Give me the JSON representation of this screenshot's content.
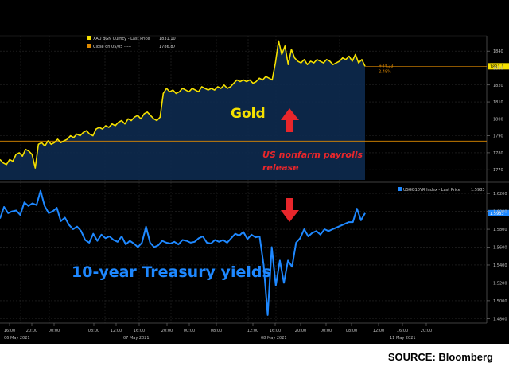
{
  "chart_data": [
    {
      "type": "area",
      "legend": [
        {
          "text": "XAU BGN Curncy - Last Price",
          "value": "1831.10",
          "color": "#f5e000"
        },
        {
          "text": "Close on 05/05 -----",
          "value": "1786.87",
          "color": "#e08a00"
        }
      ],
      "annotation": "Gold",
      "series": [
        {
          "name": "XAU BGN Curncy",
          "color": "#f5e000",
          "values": [
            1776,
            1774,
            1773,
            1776,
            1775,
            1779,
            1780,
            1778,
            1782,
            1781,
            1779,
            1771,
            1785,
            1786,
            1784,
            1787,
            1785,
            1786,
            1788,
            1786,
            1787,
            1788,
            1790,
            1789,
            1791,
            1790,
            1792,
            1793,
            1791,
            1790,
            1794,
            1795,
            1794,
            1796,
            1795,
            1797,
            1796,
            1798,
            1799,
            1797,
            1800,
            1799,
            1801,
            1802,
            1800,
            1803,
            1804,
            1802,
            1800,
            1799,
            1801,
            1815,
            1818,
            1816,
            1817,
            1815,
            1816,
            1818,
            1817,
            1816,
            1818,
            1817,
            1816,
            1819,
            1818,
            1817,
            1818,
            1817,
            1819,
            1818,
            1820,
            1818,
            1819,
            1821,
            1823,
            1822,
            1823,
            1822,
            1823,
            1821,
            1822,
            1824,
            1823,
            1825,
            1824,
            1823,
            1833,
            1846,
            1838,
            1843,
            1832,
            1841,
            1836,
            1834,
            1833,
            1835,
            1832,
            1834,
            1833,
            1835,
            1834,
            1833,
            1835,
            1834,
            1832,
            1833,
            1834,
            1836,
            1835,
            1837,
            1834,
            1838,
            1833,
            1835,
            1831
          ]
        }
      ],
      "reference_line": {
        "value": 1786.87,
        "color": "#e08a00"
      },
      "current_label": "1831.1",
      "change_labels": [
        "+44.23",
        "2.48%"
      ],
      "ylim": [
        1764,
        1849
      ],
      "y_ticks": [
        "1840",
        "1830",
        "1820",
        "1810",
        "1800",
        "1790",
        "1780",
        "1770"
      ]
    },
    {
      "type": "line",
      "legend": [
        {
          "text": "USGG10YR Index - Last Price",
          "value": "1.5983",
          "color": "#1e88ff"
        }
      ],
      "annotation": "10-year Treasury yields",
      "series": [
        {
          "name": "USGG10YR Index",
          "color": "#1e88ff",
          "values": [
            1.592,
            1.605,
            1.598,
            1.6,
            1.601,
            1.596,
            1.61,
            1.606,
            1.609,
            1.607,
            1.623,
            1.606,
            1.598,
            1.6,
            1.604,
            1.589,
            1.593,
            1.585,
            1.58,
            1.583,
            1.578,
            1.568,
            1.565,
            1.575,
            1.567,
            1.574,
            1.57,
            1.572,
            1.568,
            1.566,
            1.572,
            1.563,
            1.567,
            1.564,
            1.56,
            1.565,
            1.583,
            1.565,
            1.56,
            1.562,
            1.567,
            1.565,
            1.564,
            1.566,
            1.563,
            1.568,
            1.567,
            1.565,
            1.566,
            1.57,
            1.572,
            1.565,
            1.564,
            1.568,
            1.566,
            1.568,
            1.565,
            1.57,
            1.575,
            1.573,
            1.577,
            1.569,
            1.574,
            1.571,
            1.572,
            1.54,
            1.484,
            1.56,
            1.517,
            1.545,
            1.52,
            1.545,
            1.538,
            1.565,
            1.57,
            1.58,
            1.572,
            1.576,
            1.578,
            1.574,
            1.58,
            1.578,
            1.58,
            1.582,
            1.584,
            1.586,
            1.588,
            1.588,
            1.603,
            1.59,
            1.598
          ]
        }
      ],
      "current_label": "1.5983",
      "ylim": [
        1.475,
        1.629
      ],
      "y_ticks": [
        "1.6200",
        "1.6000",
        "1.5800",
        "1.5600",
        "1.5400",
        "1.5200",
        "1.5000",
        "1.4800"
      ]
    }
  ],
  "x_axis": {
    "time_ticks": [
      "16:00",
      "20:00",
      "00:00",
      "08:00",
      "12:00",
      "16:00",
      "20:00",
      "00:00",
      "08:00",
      "12:00",
      "16:00",
      "20:00",
      "00:00",
      "08:00",
      "12:00",
      "16:00",
      "20:00"
    ],
    "date_ticks": [
      "06 May 2021",
      "07 May 2021",
      "08 May 2021",
      "11 May 2021"
    ]
  },
  "annotations": {
    "event": "US nonfarm payrolls release"
  },
  "source": "SOURCE: Bloomberg"
}
